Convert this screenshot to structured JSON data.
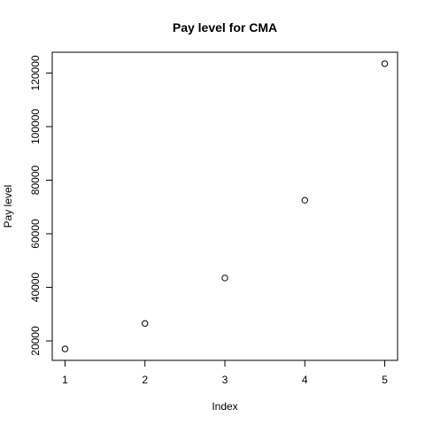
{
  "chart_data": {
    "type": "scatter",
    "title": "Pay level for  CMA",
    "xlabel": "Index",
    "ylabel": "Pay level",
    "x": [
      1,
      2,
      3,
      4,
      5
    ],
    "y": [
      17000,
      26500,
      43500,
      72500,
      123500
    ],
    "xlim": [
      0.84,
      5.16
    ],
    "ylim": [
      12740,
      127760
    ],
    "xticks": [
      1,
      2,
      3,
      4,
      5
    ],
    "yticks": [
      20000,
      40000,
      60000,
      80000,
      100000,
      120000
    ],
    "ytick_labels": [
      "20000",
      "40000",
      "60000",
      "80000",
      "100000",
      "120000"
    ],
    "grid": false,
    "marker": "open-circle"
  }
}
